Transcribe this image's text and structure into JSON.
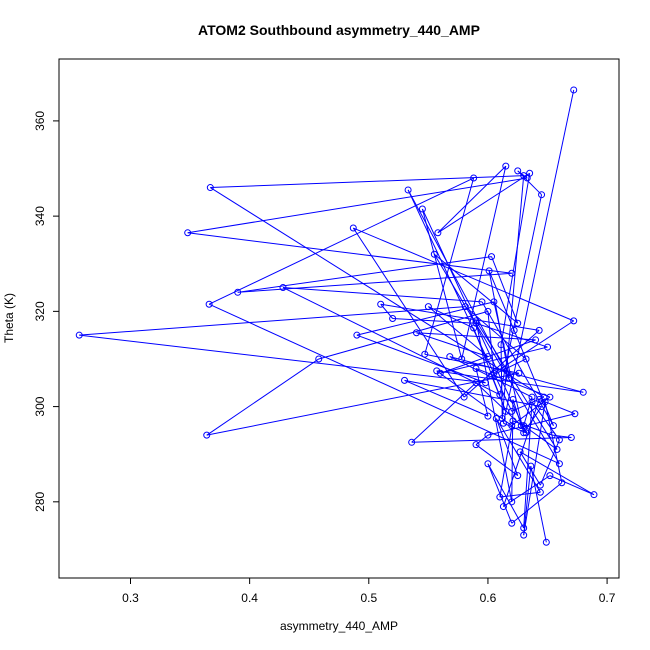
{
  "chart_data": {
    "type": "scatter",
    "connected": true,
    "title": "ATOM2 Southbound asymmetry_440_AMP",
    "xlabel": "asymmetry_440_AMP",
    "ylabel": "Theta (K)",
    "xlim": [
      0.24,
      0.71
    ],
    "ylim": [
      264,
      373
    ],
    "xticks": [
      "0.3",
      "0.4",
      "0.5",
      "0.6",
      "0.7"
    ],
    "yticks": [
      "280",
      "300",
      "320",
      "340",
      "360"
    ],
    "grid": false,
    "legend": "none",
    "series_color": "#0000ff",
    "series": [
      {
        "x": [
          0.672,
          0.613,
          0.632,
          0.545,
          0.578,
          0.615,
          0.558,
          0.635,
          0.611,
          0.612,
          0.63,
          0.367,
          0.647,
          0.62,
          0.533,
          0.618,
          0.601,
          0.622,
          0.655,
          0.595,
          0.428,
          0.61,
          0.645,
          0.625,
          0.633,
          0.348,
          0.62,
          0.39,
          0.603,
          0.625,
          0.555,
          0.66,
          0.366,
          0.588,
          0.547,
          0.626,
          0.364,
          0.458,
          0.6,
          0.605,
          0.672,
          0.487,
          0.58,
          0.643,
          0.51,
          0.52,
          0.59,
          0.65,
          0.56,
          0.64,
          0.54,
          0.6,
          0.55,
          0.588,
          0.615,
          0.603,
          0.632,
          0.581,
          0.257,
          0.598,
          0.49,
          0.605,
          0.63,
          0.645,
          0.53,
          0.6,
          0.59,
          0.652,
          0.62,
          0.557,
          0.68,
          0.568,
          0.637,
          0.63,
          0.658,
          0.59,
          0.62,
          0.621,
          0.628,
          0.59,
          0.536,
          0.67,
          0.654,
          0.621,
          0.61,
          0.644,
          0.607,
          0.625,
          0.59,
          0.6,
          0.673,
          0.643,
          0.613,
          0.652,
          0.689,
          0.627,
          0.644,
          0.66,
          0.637,
          0.63,
          0.6,
          0.62,
          0.662,
          0.648,
          0.63,
          0.636,
          0.649
        ],
        "y": [
          366.5,
          296.5,
          294.5,
          341.5,
          310.0,
          350.5,
          336.5,
          349.0,
          313.0,
          297.5,
          348.5,
          346.0,
          302.0,
          299.0,
          345.5,
          306.0,
          328.5,
          316.0,
          296.0,
          322.0,
          325.0,
          302.5,
          344.5,
          349.5,
          348.0,
          336.5,
          328.0,
          324.0,
          331.5,
          317.5,
          332.0,
          288.0,
          321.5,
          348.0,
          311.0,
          307.0,
          294.0,
          310.0,
          320.0,
          307.0,
          318.0,
          337.5,
          302.0,
          316.0,
          321.5,
          318.5,
          317.5,
          312.5,
          307.0,
          314.0,
          315.5,
          310.5,
          321.0,
          316.5,
          299.0,
          306.5,
          310.0,
          321.0,
          315.0,
          305.0,
          315.0,
          322.0,
          294.5,
          300.0,
          305.5,
          298.0,
          308.0,
          302.0,
          296.0,
          307.5,
          303.0,
          310.5,
          302.0,
          296.0,
          291.0,
          318.0,
          280.0,
          301.5,
          296.0,
          305.0,
          292.5,
          293.5,
          294.0,
          297.0,
          281.0,
          282.0,
          297.5,
          285.5,
          292.0,
          294.0,
          298.5,
          301.5,
          279.0,
          285.5,
          281.5,
          290.5,
          283.5,
          293.0,
          301.0,
          274.5,
          288.0,
          275.5,
          284.0,
          301.0,
          273.0,
          287.5,
          271.5
        ]
      }
    ]
  }
}
